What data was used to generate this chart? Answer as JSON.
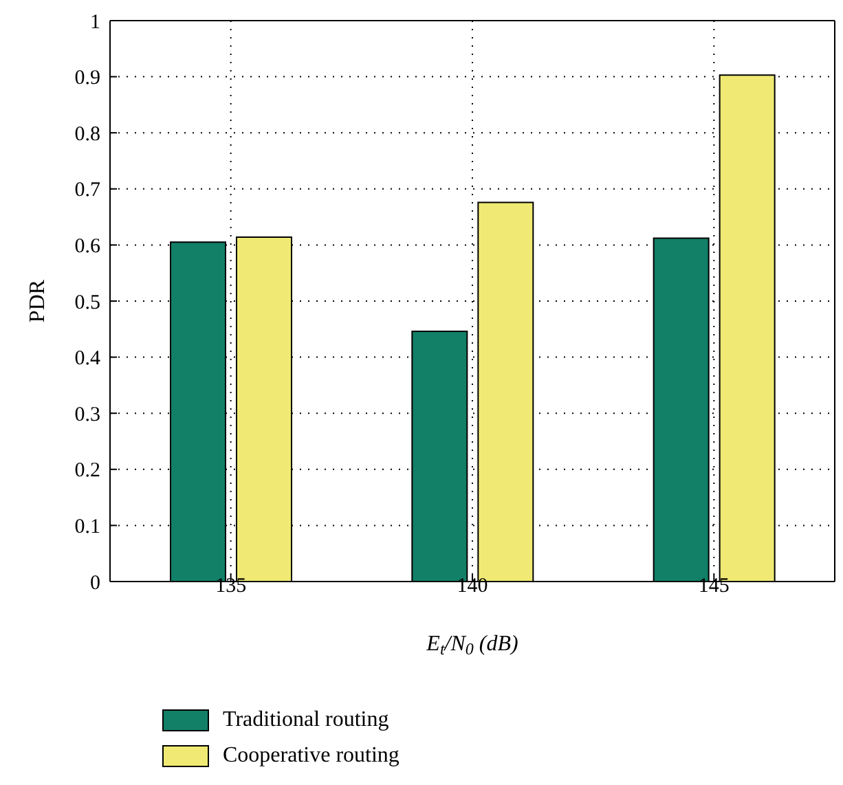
{
  "chart_data": {
    "type": "bar",
    "xlabel": "E$_{t}$/N$_{0}$ (dB)",
    "ylabel": "PDR",
    "categories": [
      "135",
      "140",
      "145"
    ],
    "series": [
      {
        "name": "Traditional routing",
        "color": "#127f67",
        "values": [
          0.605,
          0.446,
          0.612
        ]
      },
      {
        "name": "Cooperative routing",
        "color": "#f0ea74",
        "values": [
          0.614,
          0.676,
          0.903
        ]
      }
    ],
    "ylim": [
      0,
      1
    ],
    "yticks": [
      0,
      0.1,
      0.2,
      0.3,
      0.4,
      0.5,
      0.6,
      0.7,
      0.8,
      0.9,
      1
    ],
    "grid": true,
    "legend": "bottom left"
  }
}
